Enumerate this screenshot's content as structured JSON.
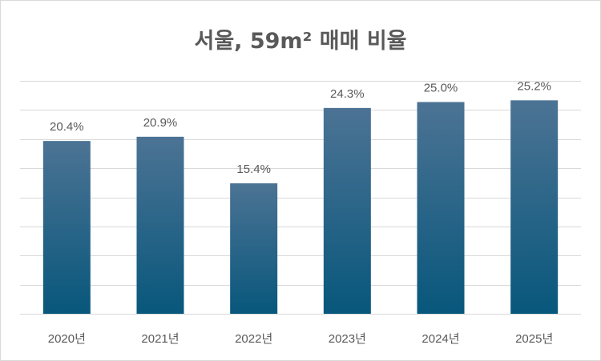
{
  "chart_data": {
    "type": "bar",
    "title": "서울, 59m² 매매 비율",
    "categories": [
      "2020년",
      "2021년",
      "2022년",
      "2023년",
      "2024년",
      "2025년"
    ],
    "values": [
      20.4,
      20.9,
      15.4,
      24.3,
      25.0,
      25.2
    ],
    "value_labels": [
      "20.4%",
      "20.9%",
      "15.4%",
      "24.3%",
      "25.0%",
      "25.2%"
    ],
    "ylim": [
      0,
      27.5
    ],
    "grid": true,
    "colors": {
      "bar_top": "#4c7394",
      "bar_bottom": "#08577c",
      "grid": "#d9d9d9",
      "text": "#595959"
    }
  }
}
